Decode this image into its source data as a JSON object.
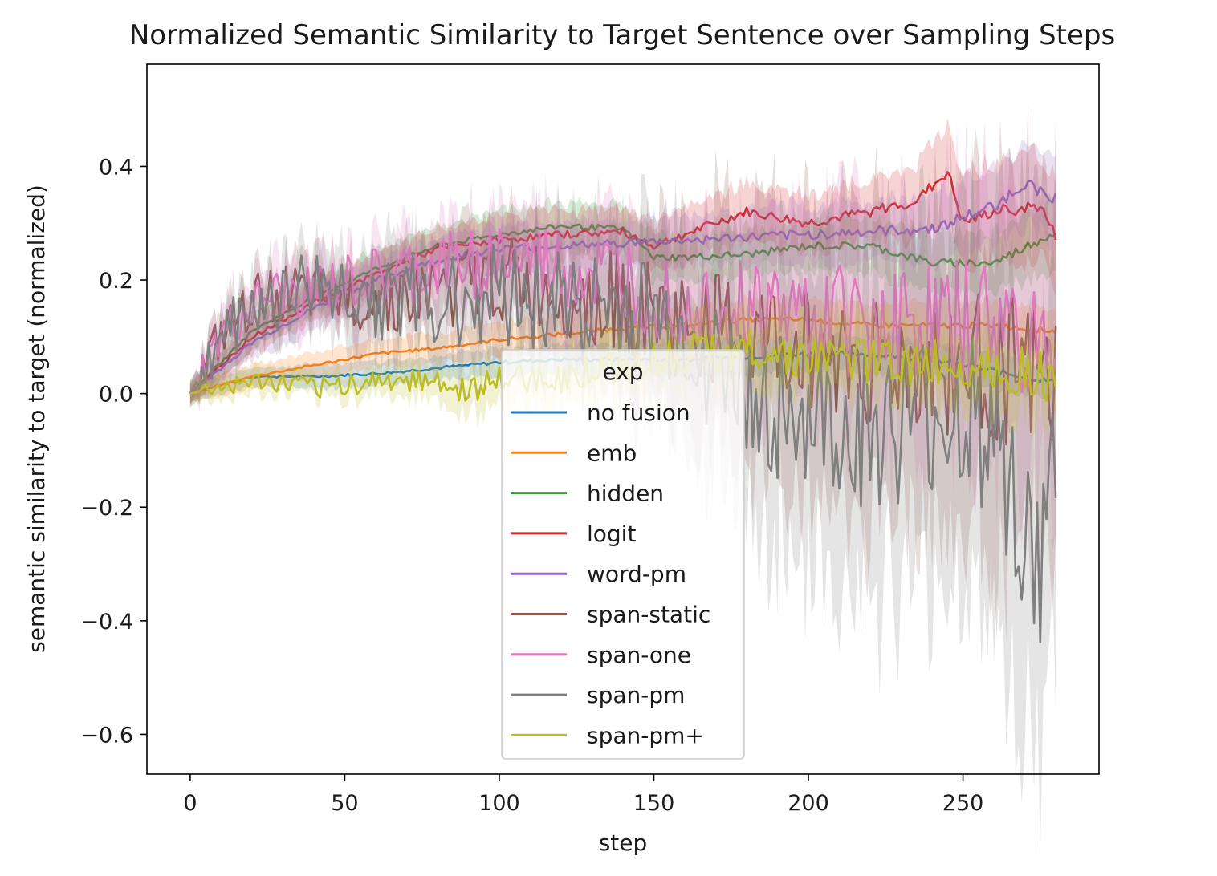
{
  "chart_data": {
    "type": "line",
    "title": "Normalized Semantic Similarity to Target Sentence over Sampling Steps",
    "xlabel": "step",
    "ylabel": "semantic similarity to target (normalized)",
    "xlim": [
      -14,
      294
    ],
    "ylim": [
      -0.67,
      0.58
    ],
    "xticks": [
      0,
      50,
      100,
      150,
      200,
      250
    ],
    "xtick_labels": [
      "0",
      "50",
      "100",
      "150",
      "200",
      "250"
    ],
    "yticks": [
      -0.6,
      -0.4,
      -0.2,
      0.0,
      0.2,
      0.4
    ],
    "ytick_labels": [
      "−0.6",
      "−0.4",
      "−0.2",
      "0.0",
      "0.2",
      "0.4"
    ],
    "grid": false,
    "legend": {
      "title": "exp",
      "placement": "lower center"
    },
    "series": [
      {
        "name": "no fusion",
        "color": "#1f77b4",
        "x": [
          0,
          20,
          40,
          60,
          80,
          100,
          120,
          140,
          160,
          180,
          200,
          220,
          240,
          260,
          280
        ],
        "values": [
          0.0,
          0.03,
          0.03,
          0.035,
          0.045,
          0.055,
          0.06,
          0.06,
          0.06,
          0.065,
          0.07,
          0.07,
          0.06,
          0.04,
          0.02
        ],
        "band": [
          0.015,
          0.015,
          0.02,
          0.02,
          0.02,
          0.025,
          0.025,
          0.03,
          0.03,
          0.03,
          0.03,
          0.03,
          0.03,
          0.03,
          0.03
        ],
        "noise": 0.004
      },
      {
        "name": "emb",
        "color": "#ff7f0e",
        "x": [
          0,
          20,
          40,
          60,
          80,
          100,
          120,
          140,
          160,
          180,
          200,
          220,
          240,
          260,
          280
        ],
        "values": [
          0.0,
          0.03,
          0.05,
          0.07,
          0.08,
          0.095,
          0.105,
          0.115,
          0.12,
          0.13,
          0.13,
          0.12,
          0.12,
          0.12,
          0.11
        ],
        "band": [
          0.015,
          0.02,
          0.02,
          0.025,
          0.025,
          0.03,
          0.03,
          0.03,
          0.03,
          0.035,
          0.035,
          0.035,
          0.04,
          0.04,
          0.04
        ],
        "noise": 0.004
      },
      {
        "name": "hidden",
        "color": "#2ca02c",
        "x": [
          0,
          20,
          40,
          60,
          80,
          100,
          120,
          140,
          150,
          160,
          180,
          200,
          220,
          240,
          260,
          280
        ],
        "values": [
          0.0,
          0.11,
          0.17,
          0.22,
          0.26,
          0.28,
          0.295,
          0.29,
          0.24,
          0.24,
          0.245,
          0.26,
          0.26,
          0.23,
          0.23,
          0.285
        ],
        "band": [
          0.02,
          0.03,
          0.03,
          0.035,
          0.035,
          0.04,
          0.04,
          0.04,
          0.04,
          0.04,
          0.04,
          0.04,
          0.045,
          0.05,
          0.05,
          0.06
        ],
        "noise": 0.006
      },
      {
        "name": "logit",
        "color": "#d62728",
        "x": [
          0,
          20,
          40,
          60,
          80,
          100,
          120,
          140,
          150,
          160,
          180,
          200,
          220,
          235,
          245,
          250,
          260,
          275,
          280
        ],
        "values": [
          0.0,
          0.1,
          0.16,
          0.21,
          0.255,
          0.27,
          0.28,
          0.285,
          0.26,
          0.28,
          0.32,
          0.3,
          0.32,
          0.34,
          0.39,
          0.3,
          0.32,
          0.33,
          0.275
        ],
        "band": [
          0.02,
          0.03,
          0.03,
          0.035,
          0.035,
          0.04,
          0.04,
          0.04,
          0.04,
          0.045,
          0.05,
          0.05,
          0.05,
          0.06,
          0.08,
          0.08,
          0.08,
          0.09,
          0.09
        ],
        "noise": 0.008
      },
      {
        "name": "word-pm",
        "color": "#9467bd",
        "x": [
          0,
          20,
          40,
          60,
          80,
          100,
          120,
          140,
          160,
          180,
          200,
          220,
          240,
          260,
          270,
          280
        ],
        "values": [
          0.0,
          0.09,
          0.15,
          0.2,
          0.235,
          0.255,
          0.26,
          0.265,
          0.27,
          0.275,
          0.28,
          0.285,
          0.29,
          0.33,
          0.37,
          0.345
        ],
        "band": [
          0.02,
          0.03,
          0.035,
          0.035,
          0.04,
          0.04,
          0.04,
          0.04,
          0.045,
          0.045,
          0.05,
          0.05,
          0.06,
          0.07,
          0.07,
          0.07
        ],
        "noise": 0.008
      },
      {
        "name": "span-static",
        "color": "#8c564b",
        "x": [
          0,
          10,
          25,
          40,
          60,
          80,
          100,
          120,
          140,
          160,
          180,
          200,
          220,
          240,
          260,
          280
        ],
        "values": [
          0.0,
          0.1,
          0.18,
          0.17,
          0.17,
          0.18,
          0.2,
          0.18,
          0.16,
          0.12,
          0.1,
          0.08,
          0.06,
          0.04,
          0.05,
          0.0
        ],
        "band": [
          0.02,
          0.04,
          0.05,
          0.05,
          0.06,
          0.07,
          0.08,
          0.09,
          0.12,
          0.16,
          0.2,
          0.22,
          0.24,
          0.26,
          0.28,
          0.3
        ],
        "noise": 0.1
      },
      {
        "name": "span-one",
        "color": "#e377c2",
        "x": [
          0,
          10,
          25,
          40,
          60,
          80,
          100,
          120,
          140,
          160,
          180,
          200,
          220,
          240,
          260,
          280
        ],
        "values": [
          0.0,
          0.1,
          0.17,
          0.18,
          0.2,
          0.22,
          0.24,
          0.22,
          0.2,
          0.17,
          0.15,
          0.14,
          0.13,
          0.12,
          0.12,
          0.1
        ],
        "band": [
          0.02,
          0.04,
          0.05,
          0.05,
          0.06,
          0.07,
          0.08,
          0.09,
          0.1,
          0.12,
          0.14,
          0.16,
          0.18,
          0.2,
          0.22,
          0.24
        ],
        "noise": 0.09
      },
      {
        "name": "span-pm",
        "color": "#7f7f7f",
        "x": [
          0,
          10,
          25,
          40,
          60,
          80,
          100,
          120,
          140,
          160,
          180,
          200,
          220,
          240,
          260,
          275,
          280
        ],
        "values": [
          0.0,
          0.1,
          0.17,
          0.19,
          0.17,
          0.16,
          0.18,
          0.16,
          0.14,
          0.1,
          0.0,
          -0.05,
          -0.08,
          -0.05,
          -0.05,
          -0.35,
          -0.1
        ],
        "band": [
          0.02,
          0.04,
          0.05,
          0.06,
          0.07,
          0.08,
          0.09,
          0.1,
          0.12,
          0.16,
          0.2,
          0.24,
          0.26,
          0.28,
          0.3,
          0.3,
          0.3
        ],
        "noise": 0.12
      },
      {
        "name": "span-pm+",
        "color": "#bcbd22",
        "x": [
          0,
          20,
          40,
          60,
          80,
          85,
          100,
          120,
          140,
          160,
          180,
          200,
          220,
          240,
          260,
          280
        ],
        "values": [
          0.0,
          0.02,
          0.01,
          0.02,
          0.03,
          0.0,
          0.02,
          0.03,
          0.05,
          0.07,
          0.08,
          0.06,
          0.06,
          0.05,
          0.05,
          0.03
        ],
        "band": [
          0.02,
          0.02,
          0.02,
          0.025,
          0.03,
          0.04,
          0.04,
          0.04,
          0.05,
          0.05,
          0.06,
          0.06,
          0.06,
          0.06,
          0.06,
          0.06
        ],
        "noise": 0.035
      }
    ]
  }
}
